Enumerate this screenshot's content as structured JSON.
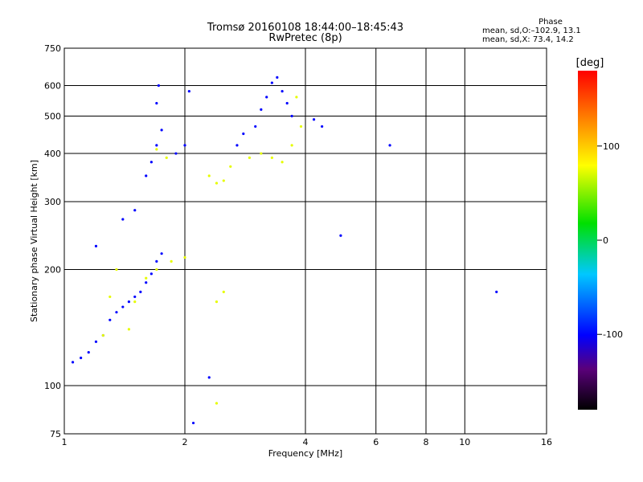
{
  "chart_data": {
    "type": "scatter",
    "title": "Tromsø 20160108 18:44:00–18:45:43",
    "subtitle": "RwPretec (8p)",
    "xlabel": "Frequency [MHz]",
    "ylabel": "Stationary phase Virtual Height [km]",
    "x_scale": "log",
    "y_scale": "log",
    "xlim": [
      1,
      16
    ],
    "ylim": [
      75,
      750
    ],
    "x_ticks": [
      1,
      2,
      4,
      6,
      8,
      10,
      16
    ],
    "y_ticks": [
      75,
      100,
      200,
      300,
      400,
      500,
      600,
      750
    ],
    "grid": true,
    "colorbar": {
      "label": "[deg]",
      "range": [
        -180,
        180
      ],
      "ticks": [
        100,
        0,
        -100
      ]
    },
    "phase_stats": {
      "header": "Phase",
      "line1": "mean, sd,O:–102.9, 13.1",
      "line2": "mean, sd,X:  73.4, 14.2"
    },
    "series": [
      {
        "name": "O",
        "color_value": -100,
        "points": [
          [
            1.05,
            115
          ],
          [
            1.1,
            118
          ],
          [
            1.15,
            122
          ],
          [
            1.2,
            130
          ],
          [
            1.25,
            135
          ],
          [
            1.3,
            148
          ],
          [
            1.35,
            155
          ],
          [
            1.4,
            160
          ],
          [
            1.45,
            165
          ],
          [
            1.5,
            170
          ],
          [
            1.55,
            175
          ],
          [
            1.6,
            185
          ],
          [
            1.65,
            195
          ],
          [
            1.7,
            210
          ],
          [
            1.75,
            220
          ],
          [
            1.4,
            270
          ],
          [
            1.5,
            285
          ],
          [
            1.2,
            230
          ],
          [
            1.6,
            350
          ],
          [
            1.65,
            380
          ],
          [
            1.7,
            420
          ],
          [
            1.75,
            460
          ],
          [
            1.7,
            540
          ],
          [
            1.72,
            600
          ],
          [
            1.9,
            400
          ],
          [
            2.0,
            420
          ],
          [
            2.05,
            580
          ],
          [
            2.7,
            420
          ],
          [
            2.8,
            450
          ],
          [
            3.0,
            470
          ],
          [
            3.1,
            520
          ],
          [
            3.2,
            560
          ],
          [
            3.3,
            610
          ],
          [
            3.4,
            630
          ],
          [
            3.5,
            580
          ],
          [
            3.6,
            540
          ],
          [
            3.7,
            500
          ],
          [
            4.2,
            490
          ],
          [
            4.4,
            470
          ],
          [
            6.5,
            420
          ],
          [
            12,
            175
          ],
          [
            4.9,
            245
          ],
          [
            2.3,
            105
          ],
          [
            2.1,
            80
          ]
        ]
      },
      {
        "name": "X",
        "color_value": 73,
        "points": [
          [
            1.25,
            135
          ],
          [
            1.3,
            170
          ],
          [
            1.35,
            200
          ],
          [
            1.45,
            140
          ],
          [
            1.5,
            165
          ],
          [
            1.6,
            190
          ],
          [
            1.7,
            200
          ],
          [
            1.85,
            210
          ],
          [
            2.0,
            215
          ],
          [
            1.7,
            410
          ],
          [
            1.8,
            390
          ],
          [
            2.3,
            350
          ],
          [
            2.4,
            335
          ],
          [
            2.5,
            340
          ],
          [
            2.6,
            370
          ],
          [
            2.9,
            390
          ],
          [
            3.1,
            400
          ],
          [
            3.3,
            390
          ],
          [
            3.5,
            380
          ],
          [
            3.7,
            420
          ],
          [
            3.9,
            470
          ],
          [
            3.8,
            560
          ],
          [
            2.4,
            165
          ],
          [
            2.5,
            175
          ],
          [
            2.4,
            90
          ]
        ]
      }
    ]
  }
}
